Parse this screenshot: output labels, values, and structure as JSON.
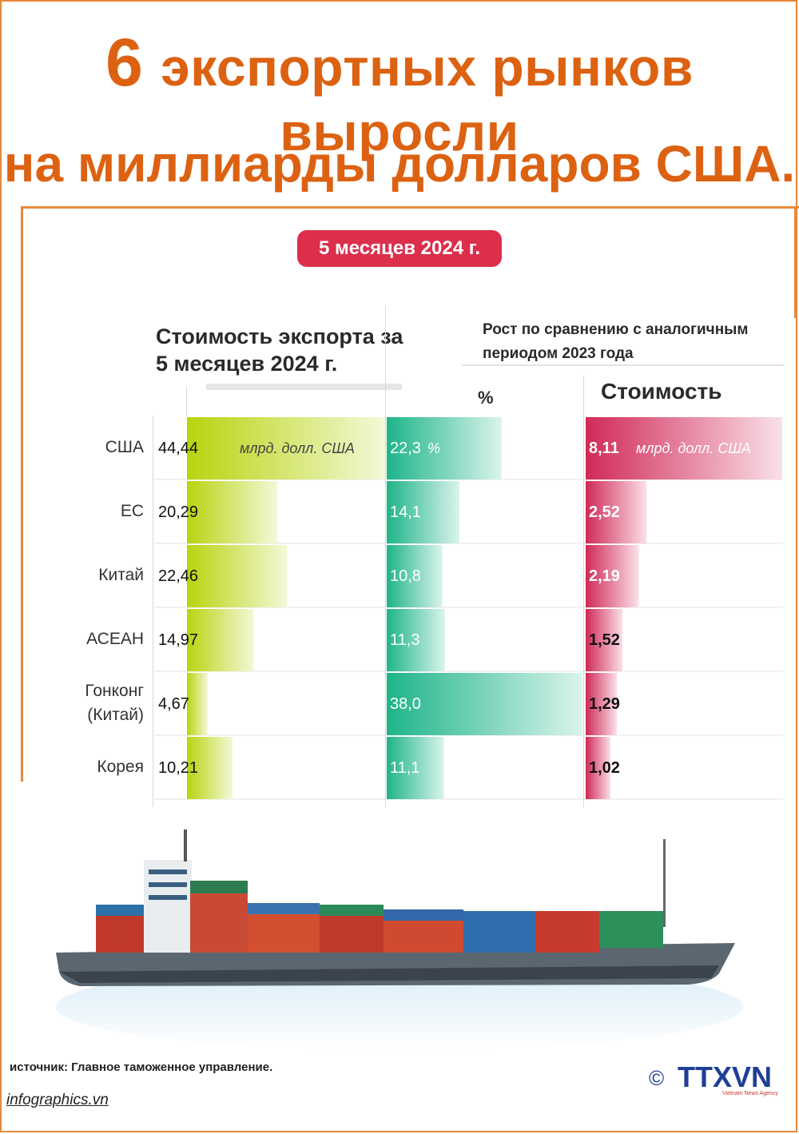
{
  "title": {
    "number": "6",
    "line1": "экспортных рынков выросли",
    "line2": "на миллиарды долларов США."
  },
  "period": "5 месяцев 2024 г.",
  "headers": {
    "export_value": "Стоимость экспорта за 5 месяцев 2024 г.",
    "growth": "Рост по сравнению с аналогичным периодом 2023 года",
    "percent": "%",
    "value": "Стоимость"
  },
  "chart_data": {
    "type": "bar",
    "categories": [
      "США",
      "ЕС",
      "Китай",
      "АСЕАН",
      "Гонконг (Китай)",
      "Корея"
    ],
    "series": [
      {
        "name": "Стоимость экспорта за 5 месяцев 2024 г.",
        "values": [
          44.44,
          20.29,
          22.46,
          14.97,
          4.67,
          10.21
        ],
        "labels": [
          "44,44",
          "20,29",
          "22,46",
          "14,97",
          "4,67",
          "10,21"
        ],
        "unit": "млрд. долл. США",
        "color": "#b8d40f"
      },
      {
        "name": "%",
        "values": [
          22.3,
          14.1,
          10.8,
          11.3,
          38.0,
          11.1
        ],
        "labels": [
          "22,3",
          "14,1",
          "10,8",
          "11,3",
          "38,0",
          "11,1"
        ],
        "unit": "%",
        "color": "#23b88e"
      },
      {
        "name": "Стоимость",
        "values": [
          8.11,
          2.52,
          2.19,
          1.52,
          1.29,
          1.02
        ],
        "labels": [
          "8,11",
          "2,52",
          "2,19",
          "1,52",
          "1,29",
          "1,02"
        ],
        "unit": "млрд. долл. США",
        "color": "#d2305a"
      }
    ]
  },
  "source": "источник: Главное таможенное управление.",
  "website": "infographics.vn",
  "logo": {
    "copyright": "©",
    "name": "TTXVN",
    "tagline": "Vietnam News Agency"
  },
  "colors": {
    "title": "#dc6212",
    "frame": "#e8883a",
    "badge": "#dc2f4c"
  }
}
